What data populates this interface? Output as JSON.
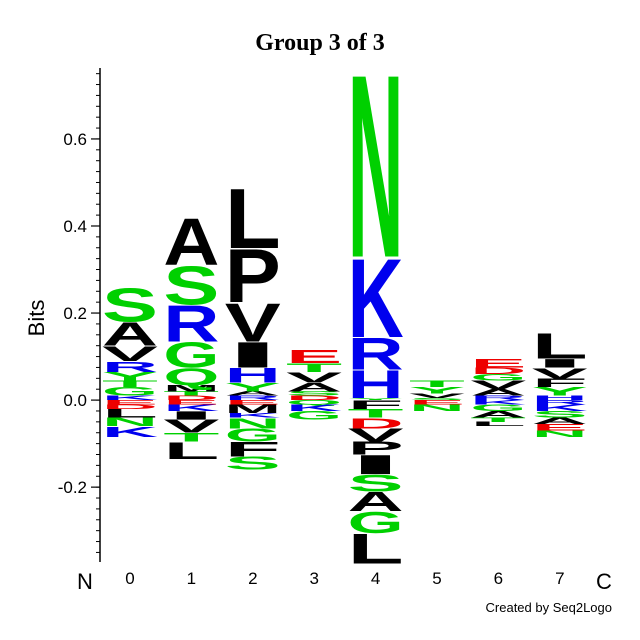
{
  "chart_data": {
    "type": "logo",
    "title": "Group 3 of 3",
    "ylabel": "Bits",
    "n_label": "N",
    "c_label": "C",
    "footer": "Created by Seq2Logo",
    "ylim": [
      -0.372,
      0.763
    ],
    "yticks": [
      -0.2,
      {
        "value": 0,
        "label": "0.0"
      },
      0.2,
      0.4,
      0.6
    ],
    "minor_tick_step": 0.025,
    "letter_colors": {
      "A": "#000000",
      "V": "#000000",
      "L": "#000000",
      "I": "#000000",
      "P": "#000000",
      "F": "#000000",
      "M": "#000000",
      "W": "#000000",
      "S": "#00d000",
      "T": "#00d000",
      "G": "#00d000",
      "Y": "#00d000",
      "Q": "#00d000",
      "N": "#00d000",
      "C": "#00d000",
      "K": "#0000ee",
      "R": "#0000ee",
      "H": "#0000ee",
      "D": "#ee0000",
      "E": "#ee0000"
    },
    "categories": [
      "0",
      "1",
      "2",
      "3",
      "4",
      "5",
      "6",
      "7"
    ],
    "positions": [
      {
        "positive": [
          {
            "letter": "K",
            "bits": 0.01
          },
          {
            "letter": "G",
            "bits": 0.02
          },
          {
            "letter": "T",
            "bits": 0.015
          },
          {
            "letter": "Y",
            "bits": 0.02
          },
          {
            "letter": "R",
            "bits": 0.025
          },
          {
            "letter": "V",
            "bits": 0.035
          },
          {
            "letter": "A",
            "bits": 0.055
          },
          {
            "letter": "S",
            "bits": 0.08
          }
        ],
        "negative": [
          {
            "letter": "E",
            "bits": 0.01
          },
          {
            "letter": "D",
            "bits": 0.01
          },
          {
            "letter": "L",
            "bits": 0.02
          },
          {
            "letter": "N",
            "bits": 0.02
          },
          {
            "letter": "K",
            "bits": 0.025
          }
        ]
      },
      {
        "positive": [
          {
            "letter": "D",
            "bits": 0.01
          },
          {
            "letter": "T",
            "bits": 0.01
          },
          {
            "letter": "M",
            "bits": 0.015
          },
          {
            "letter": "Q",
            "bits": 0.04
          },
          {
            "letter": "G",
            "bits": 0.06
          },
          {
            "letter": "R",
            "bits": 0.085
          },
          {
            "letter": "S",
            "bits": 0.09
          },
          {
            "letter": "A",
            "bits": 0.11
          }
        ],
        "negative": [
          {
            "letter": "E",
            "bits": 0.01
          },
          {
            "letter": "K",
            "bits": 0.015
          },
          {
            "letter": "I",
            "bits": 0.02
          },
          {
            "letter": "V",
            "bits": 0.03
          },
          {
            "letter": "T",
            "bits": 0.02
          },
          {
            "letter": "L",
            "bits": 0.04
          }
        ]
      },
      {
        "positive": [
          {
            "letter": "R",
            "bits": 0.01
          },
          {
            "letter": "A",
            "bits": 0.01
          },
          {
            "letter": "Y",
            "bits": 0.02
          },
          {
            "letter": "H",
            "bits": 0.035
          },
          {
            "letter": "I",
            "bits": 0.06
          },
          {
            "letter": "V",
            "bits": 0.09
          },
          {
            "letter": "P",
            "bits": 0.125
          },
          {
            "letter": "L",
            "bits": 0.14
          }
        ],
        "negative": [
          {
            "letter": "E",
            "bits": 0.01
          },
          {
            "letter": "M",
            "bits": 0.02
          },
          {
            "letter": "K",
            "bits": 0.01
          },
          {
            "letter": "N",
            "bits": 0.025
          },
          {
            "letter": "G",
            "bits": 0.03
          },
          {
            "letter": "F",
            "bits": 0.035
          },
          {
            "letter": "S",
            "bits": 0.03
          }
        ]
      },
      {
        "positive": [
          {
            "letter": "D",
            "bits": 0.01
          },
          {
            "letter": "S",
            "bits": 0.01
          },
          {
            "letter": "A",
            "bits": 0.02
          },
          {
            "letter": "V",
            "bits": 0.025
          },
          {
            "letter": "T",
            "bits": 0.02
          },
          {
            "letter": "E",
            "bits": 0.03
          }
        ],
        "negative": [
          {
            "letter": "Q",
            "bits": 0.01
          },
          {
            "letter": "K",
            "bits": 0.015
          },
          {
            "letter": "G",
            "bits": 0.02
          }
        ]
      },
      {
        "positive": [
          {
            "letter": "Y",
            "bits": 0.005
          },
          {
            "letter": "H",
            "bits": 0.065
          },
          {
            "letter": "R",
            "bits": 0.075
          },
          {
            "letter": "K",
            "bits": 0.185
          },
          {
            "letter": "N",
            "bits": 0.43
          }
        ],
        "negative": [
          {
            "letter": "F",
            "bits": 0.02
          },
          {
            "letter": "T",
            "bits": 0.02
          },
          {
            "letter": "D",
            "bits": 0.025
          },
          {
            "letter": "V",
            "bits": 0.03
          },
          {
            "letter": "P",
            "bits": 0.03
          },
          {
            "letter": "I",
            "bits": 0.045
          },
          {
            "letter": "S",
            "bits": 0.04
          },
          {
            "letter": "A",
            "bits": 0.045
          },
          {
            "letter": "G",
            "bits": 0.05
          },
          {
            "letter": "L",
            "bits": 0.07
          }
        ]
      },
      {
        "positive": [
          {
            "letter": "S",
            "bits": 0.005
          },
          {
            "letter": "V",
            "bits": 0.01
          },
          {
            "letter": "Y",
            "bits": 0.015
          },
          {
            "letter": "T",
            "bits": 0.015
          }
        ],
        "negative": [
          {
            "letter": "E",
            "bits": 0.01
          },
          {
            "letter": "N",
            "bits": 0.015
          }
        ]
      },
      {
        "positive": [
          {
            "letter": "R",
            "bits": 0.01
          },
          {
            "letter": "A",
            "bits": 0.015
          },
          {
            "letter": "V",
            "bits": 0.02
          },
          {
            "letter": "G",
            "bits": 0.015
          },
          {
            "letter": "D",
            "bits": 0.015
          },
          {
            "letter": "E",
            "bits": 0.02
          }
        ],
        "negative": [
          {
            "letter": "K",
            "bits": 0.01
          },
          {
            "letter": "G",
            "bits": 0.015
          },
          {
            "letter": "A",
            "bits": 0.015
          },
          {
            "letter": "T",
            "bits": 0.01
          },
          {
            "letter": "L",
            "bits": 0.01
          }
        ]
      },
      {
        "positive": [
          {
            "letter": "H",
            "bits": 0.01
          },
          {
            "letter": "Y",
            "bits": 0.02
          },
          {
            "letter": "F",
            "bits": 0.02
          },
          {
            "letter": "V",
            "bits": 0.025
          },
          {
            "letter": "I",
            "bits": 0.02
          },
          {
            "letter": "L",
            "bits": 0.06
          }
        ],
        "negative": [
          {
            "letter": "R",
            "bits": 0.01
          },
          {
            "letter": "K",
            "bits": 0.015
          },
          {
            "letter": "S",
            "bits": 0.015
          },
          {
            "letter": "A",
            "bits": 0.015
          },
          {
            "letter": "E",
            "bits": 0.015
          },
          {
            "letter": "N",
            "bits": 0.015
          }
        ]
      }
    ]
  }
}
